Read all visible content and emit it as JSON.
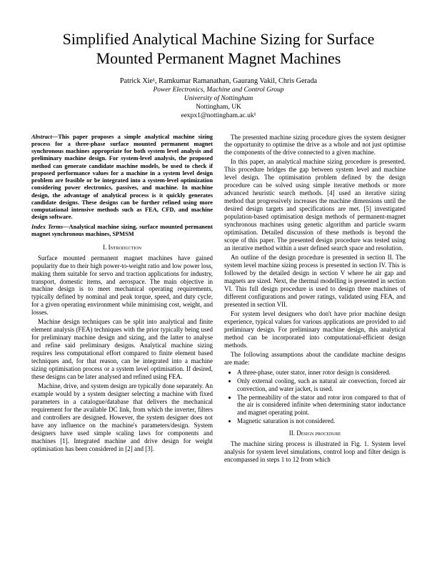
{
  "title": "Simplified Analytical Machine Sizing for Surface Mounted Permanent Magnet Machines",
  "authors": "Patrick Xie¹, Ramkumar Ramanathan, Gaurang Vakil, Chris Gerada",
  "affil_group": "Power Electronics, Machine and Control Group",
  "affil_univ": "University of Nottingham",
  "affil_loc": "Nottingham, UK",
  "email": "eexpx1@nottingham.ac.uk¹",
  "abstract_lead": "Abstract",
  "abstract_body": "—This paper proposes a simple analytical machine sizing process for a three-phase surface mounted permanent magnet synchronous machines appropriate for both system level analysis and preliminary machine design. For system-level analysis, the proposed method can generate candidate machine models, be used to check if proposed performance values for a machine in a system level design problem are feasible or be integrated into a system-level optimization considering power electronics, passives, and machine. In machine design, the advantage of analytical process is it quickly generates candidate designs. These designs can be further refined using more computational intensive methods such as FEA, CFD, and machine design software.",
  "index_lead": "Index Terms",
  "index_body": "—Analytical machine sizing, surface mounted permanent magnet synchronous machines, SPMSM",
  "sec1_h": "I.  Introduction",
  "p1": "Surface mounted permanent magnet machines have gained popularity due to their high power-to-weight ratio and low power loss, making them suitable for servo and traction applications for industry, transport, domestic items, and aerospace. The main objective in machine design is to meet mechanical operating requirements, typically defined by nominal and peak torque, speed, and duty cycle, for a given operating environment while minimising cost, weight, and losses.",
  "p2": "Machine design techniques can be split into analytical and finite element analysis (FEA) techniques with the prior typically being used for preliminary machine design and sizing, and the latter to analyse and refine said preliminary designs. Analytical machine sizing requires less computational effort compared to finite element based techniques and, for that reason, can be integrated into a machine sizing optimisation process or a system level optimisation. If desired, these designs can be later analysed and refined using FEA.",
  "p3": "Machine, drive, and system design are typically done separately. An example would by a system designer selecting a machine with fixed parameters in a catalogue/database that delivers the mechanical requirement for the available DC link, from which the inverter, filters and controllers are designed. However, the system designer does not have any influence on the machine's parameters/design. System designers have used simple scaling laws for components and machines [1]. Integrated machine and drive design for weight optimisation has been considered in [2] and [3].",
  "p4": "The presented machine sizing procedure gives the system designer the opportunity to optimise the drive as a whole and not just optimise the components of the drive connected to a given machine.",
  "p5": "In this paper, an analytical machine sizing procedure is presented. This procedure bridges the gap between system level and machine level design. The optimisation problem defined by the design procedure can be solved using simple iterative methods or more advanced heuristic search methods. [4] used an iterative sizing method that progressively increases the machine dimensions until the desired design targets and specifications are met. [5] investigated population-based optimisation design methods of permanent-magnet synchronous machines using genetic algorithm and particle swarm optimisation. Detailed discussion of these methods is beyond the scope of this paper. The presented design procedure was tested using an iterative method within a user defined search space and resolution.",
  "p6": "An outline of the design procedure is presented in section II. The system level machine sizing process is presented in section IV. This is followed by the detailed design in section V where he air gap and magnets are sized. Next, the thermal modelling is presented in section VI. This full design procedure is used to design three machines of different configurations and power ratings, validated using FEA, and presented in section VII.",
  "p7": "For system level designers who don't have prior machine design experience, typical values for various applications are provided to aid preliminary design. For preliminary machine design, this analytical method can be incorporated into computational-efficient design methods.",
  "p8": "The following assumptions about the candidate machine designs are made:",
  "b1": "A three-phase, outer stator, inner rotor design is considered.",
  "b2": "Only external cooling, such as natural air convection, forced air convection, and water jacket, is used.",
  "b3": "The permeability of the stator and rotor iron compared to that of the air is considered infinite when determining stator inductance and magnet operating point.",
  "b4": "Magnetic saturation is not considered.",
  "sec2_h": "II.  Design procedure",
  "p9": "The machine sizing process is illustrated in Fig. 1. System level analysis for system level simulations, control loop and filter design is encompassed in steps 1 to 12 from which"
}
